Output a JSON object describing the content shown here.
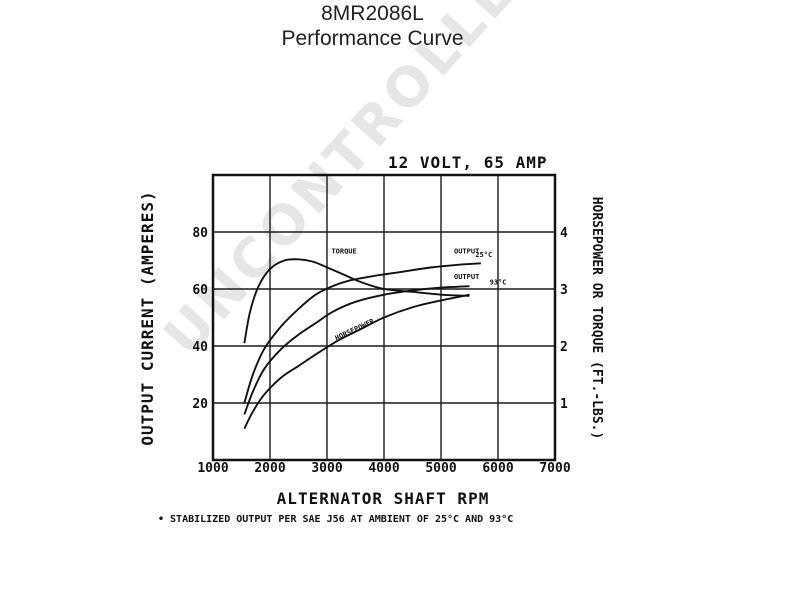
{
  "header": {
    "model": "8MR2086L",
    "subtitle": "Performance Curve"
  },
  "watermark": "UNCONTROLLED COPY",
  "footnote": "• STABILIZED OUTPUT PER SAE J56 AT AMBIENT OF 25°C AND 93°C",
  "colors": {
    "ink": "#111111",
    "grid": "#1a1a1a",
    "watermark": "#e6e6e6"
  },
  "chart_data": {
    "type": "line",
    "title": "12 VOLT, 65 AMP",
    "xlabel": "ALTERNATOR SHAFT RPM",
    "ylabel": "OUTPUT CURRENT (AMPERES)",
    "y2label": "HORSEPOWER OR TORQUE (FT.-LBS.)",
    "xlim": [
      1000,
      7000
    ],
    "ylim": [
      0,
      100
    ],
    "y2lim": [
      0,
      5
    ],
    "xticks": [
      1000,
      2000,
      3000,
      4000,
      5000,
      6000,
      7000
    ],
    "yticks": [
      20,
      40,
      60,
      80
    ],
    "y2ticks": [
      1,
      2,
      3,
      4
    ],
    "grid": true,
    "series": [
      {
        "name": "TORQUE",
        "axis": "right",
        "x": [
          1550,
          1650,
          1800,
          2000,
          2250,
          2500,
          2750,
          3000,
          3300,
          3600,
          4000,
          4500,
          5000,
          5500
        ],
        "y": [
          2.05,
          2.6,
          3.05,
          3.35,
          3.5,
          3.52,
          3.48,
          3.38,
          3.25,
          3.12,
          3.0,
          2.95,
          2.9,
          2.88
        ]
      },
      {
        "name": "OUTPUT",
        "axis": "left",
        "x": [
          1550,
          1700,
          1900,
          2200,
          2500,
          2800,
          3100,
          3400,
          3800,
          4300,
          4800,
          5300,
          5700
        ],
        "y": [
          20,
          30,
          39,
          47,
          53,
          58,
          61,
          63,
          64.5,
          66,
          67.5,
          68.5,
          69
        ]
      },
      {
        "name": "OUTPUT",
        "axis": "left",
        "x": [
          1550,
          1700,
          1900,
          2200,
          2500,
          2800,
          3100,
          3500,
          4000,
          4500,
          5000,
          5500
        ],
        "y": [
          16,
          24,
          32,
          39,
          44,
          48,
          52,
          55.5,
          58,
          59.5,
          60.5,
          61
        ]
      },
      {
        "name": "HORSEPOWER",
        "axis": "right",
        "x": [
          1550,
          1700,
          1900,
          2200,
          2500,
          2800,
          3200,
          3600,
          4000,
          4500,
          5000,
          5500
        ],
        "y": [
          0.55,
          0.85,
          1.15,
          1.45,
          1.65,
          1.85,
          2.1,
          2.3,
          2.5,
          2.68,
          2.8,
          2.9
        ]
      }
    ],
    "annotations": [
      {
        "text": "TORQUE",
        "x": 3300,
        "y": 72.5
      },
      {
        "text": "OUTPUT",
        "x": 5450,
        "y": 72.5
      },
      {
        "text": "OUTPUT",
        "x": 5450,
        "y": 63.5
      },
      {
        "text": "HORSEPOWER",
        "x": 3500,
        "y": 45
      },
      {
        "text": "25°C",
        "x": 5750,
        "y": 71.3
      },
      {
        "text": "93°C",
        "x": 6000,
        "y": 61.5
      }
    ]
  }
}
